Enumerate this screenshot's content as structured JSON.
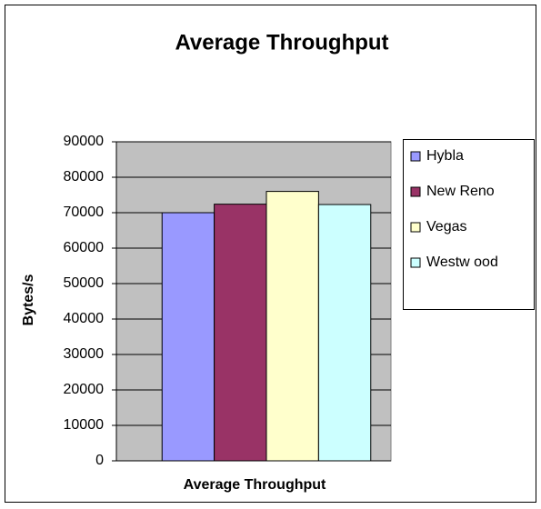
{
  "chart_data": {
    "type": "bar",
    "title": "Average Throughput",
    "x_label": "Average Throughput",
    "y_label": "Bytes/s",
    "categories": [
      "Average Throughput"
    ],
    "series": [
      {
        "name": "Hybla",
        "color": "#9999ff",
        "values": [
          70000
        ]
      },
      {
        "name": "New Reno",
        "color": "#993366",
        "values": [
          72400
        ]
      },
      {
        "name": "Vegas",
        "color": "#ffffcc",
        "values": [
          76000
        ]
      },
      {
        "name": "Westw ood",
        "color": "#ccffff",
        "values": [
          72300
        ]
      }
    ],
    "ylim": [
      0,
      90000
    ],
    "yticks": [
      0,
      10000,
      20000,
      30000,
      40000,
      50000,
      60000,
      70000,
      80000,
      90000
    ],
    "grid": true,
    "legend": "right"
  }
}
